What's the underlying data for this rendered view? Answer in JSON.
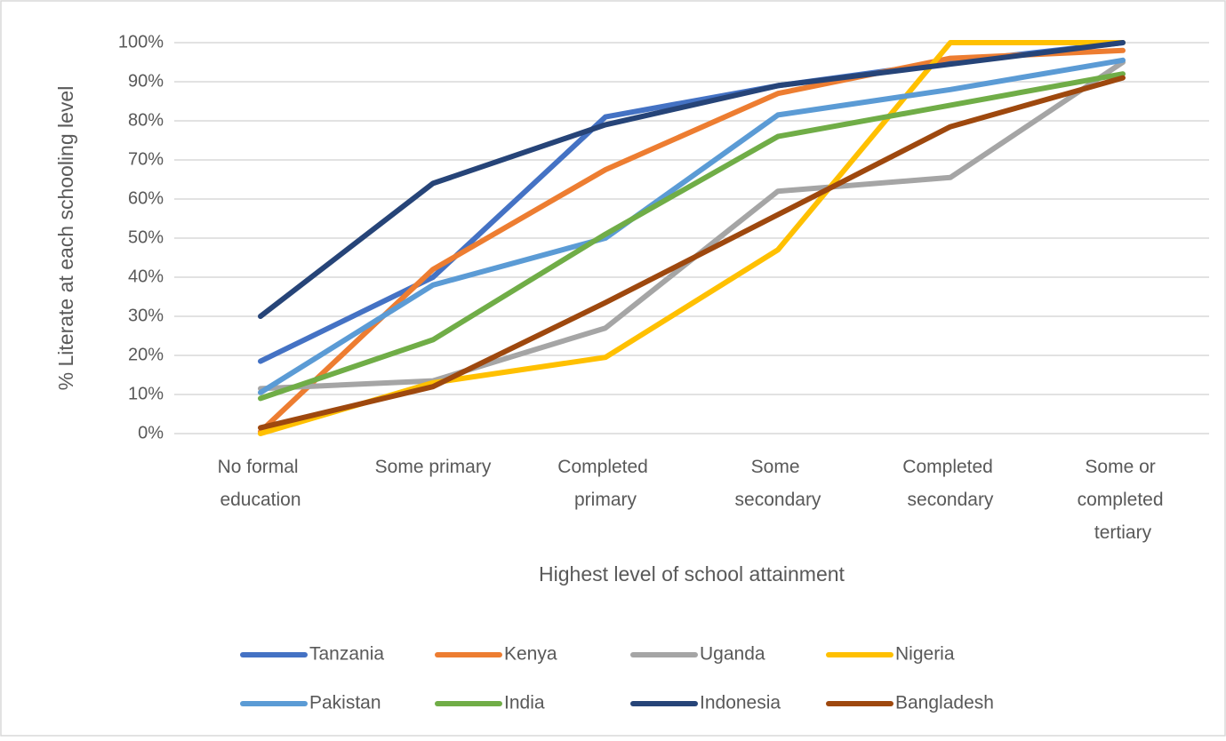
{
  "chart_data": {
    "type": "line",
    "x_label": "Highest level of school attainment",
    "y_label": "% Literate at each schooling level",
    "categories": [
      "No formal education",
      "Some primary",
      "Completed primary",
      "Some secondary",
      "Completed secondary",
      "Some or completed tertiary"
    ],
    "series": [
      {
        "name": "Tanzania",
        "color": "#4472c4",
        "values": [
          18.5,
          40,
          81,
          89,
          95,
          100
        ]
      },
      {
        "name": "Kenya",
        "color": "#ed7d31",
        "values": [
          0.5,
          42,
          67.5,
          87,
          96,
          98
        ]
      },
      {
        "name": "Uganda",
        "color": "#a5a5a5",
        "values": [
          11.5,
          13.5,
          27,
          62,
          65.5,
          95
        ]
      },
      {
        "name": "Nigeria",
        "color": "#ffc000",
        "values": [
          0,
          13,
          19.5,
          47,
          100,
          100
        ]
      },
      {
        "name": "Pakistan",
        "color": "#5b9bd5",
        "values": [
          10.5,
          38,
          50,
          81.5,
          88,
          95.5
        ]
      },
      {
        "name": "India",
        "color": "#70ad47",
        "values": [
          9,
          24,
          51,
          76,
          84,
          92
        ]
      },
      {
        "name": "Indonesia",
        "color": "#264478",
        "values": [
          30,
          64,
          79,
          89,
          94.5,
          100
        ]
      },
      {
        "name": "Bangladesh",
        "color": "#9e480e",
        "values": [
          1.5,
          12,
          33.5,
          56,
          78.5,
          91
        ]
      }
    ],
    "ylim": [
      0,
      100
    ],
    "yticks": [
      {
        "value": 0,
        "label": "0%"
      },
      {
        "value": 10,
        "label": "10%"
      },
      {
        "value": 20,
        "label": "20%"
      },
      {
        "value": 30,
        "label": "30%"
      },
      {
        "value": 40,
        "label": "40%"
      },
      {
        "value": 50,
        "label": "50%"
      },
      {
        "value": 60,
        "label": "60%"
      },
      {
        "value": 70,
        "label": "70%"
      },
      {
        "value": 80,
        "label": "80%"
      },
      {
        "value": 90,
        "label": "90%"
      },
      {
        "value": 100,
        "label": "100%"
      }
    ],
    "grid": true,
    "legend": "bottom"
  }
}
